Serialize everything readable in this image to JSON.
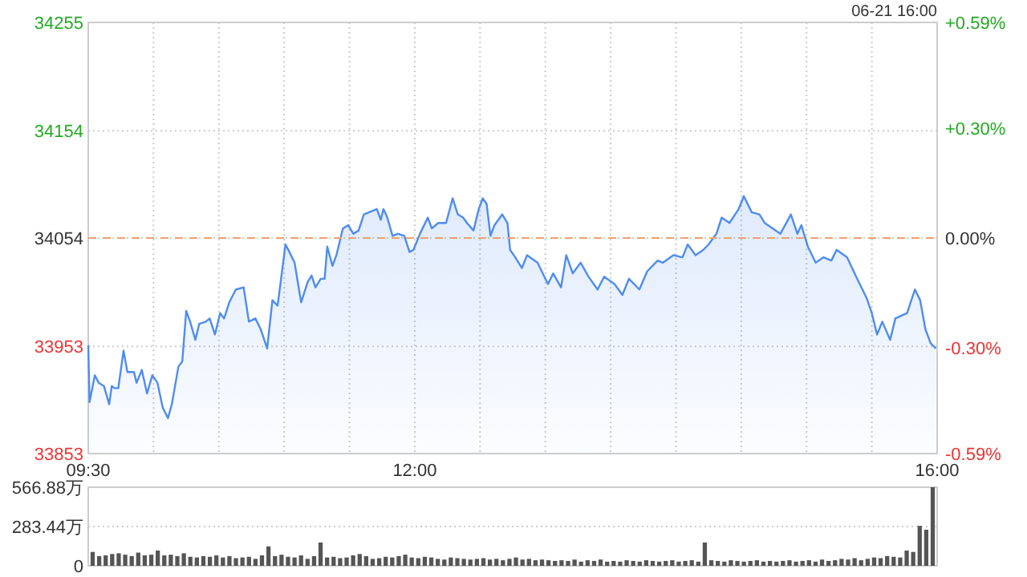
{
  "chart_data": [
    {
      "type": "area",
      "annotations": [
        "06-21 16:00"
      ],
      "x": [
        9.5,
        9.51,
        9.55,
        9.58,
        9.62,
        9.66,
        9.68,
        9.7,
        9.73,
        9.77,
        9.8,
        9.85,
        9.87,
        9.91,
        9.95,
        9.99,
        10.03,
        10.07,
        10.11,
        10.14,
        10.19,
        10.22,
        10.25,
        10.28,
        10.32,
        10.35,
        10.4,
        10.43,
        10.47,
        10.51,
        10.54,
        10.58,
        10.63,
        10.69,
        10.73,
        10.78,
        10.82,
        10.87,
        10.91,
        10.95,
        11.01,
        11.04,
        11.08,
        11.13,
        11.18,
        11.21,
        11.24,
        11.28,
        11.31,
        11.33,
        11.37,
        11.4,
        11.45,
        11.49,
        11.53,
        11.57,
        11.61,
        11.65,
        11.71,
        11.74,
        11.76,
        11.79,
        11.83,
        11.87,
        11.92,
        11.96,
        11.99,
        12.04,
        12.1,
        12.13,
        12.18,
        12.24,
        12.29,
        12.33,
        12.37,
        12.4,
        12.45,
        12.49,
        12.52,
        12.55,
        12.58,
        12.61,
        12.67,
        12.71,
        12.73,
        12.77,
        12.82,
        12.86,
        12.94,
        13.02,
        13.06,
        13.12,
        13.16,
        13.21,
        13.27,
        13.33,
        13.4,
        13.45,
        13.53,
        13.59,
        13.64,
        13.72,
        13.78,
        13.86,
        13.9,
        13.98,
        14.05,
        14.09,
        14.15,
        14.21,
        14.25,
        14.31,
        14.35,
        14.41,
        14.48,
        14.52,
        14.58,
        14.64,
        14.68,
        14.74,
        14.8,
        14.88,
        14.93,
        14.96,
        15.01,
        15.07,
        15.13,
        15.19,
        15.23,
        15.31,
        15.38,
        15.46,
        15.5,
        15.54,
        15.58,
        15.64,
        15.68,
        15.77,
        15.83,
        15.87,
        15.91,
        15.95,
        15.99
      ],
      "series": [
        {
          "color": "#4e8cf0",
          "values": [
            33954,
            33901,
            33926,
            33919,
            33916,
            33899,
            33916,
            33914,
            33914,
            33949,
            33929,
            33929,
            33919,
            33931,
            33909,
            33926,
            33919,
            33896,
            33886,
            33899,
            33934,
            33939,
            33986,
            33976,
            33959,
            33974,
            33976,
            33979,
            33964,
            33984,
            33979,
            33994,
            34006,
            34008,
            33976,
            33979,
            33969,
            33951,
            33996,
            33991,
            34048,
            34041,
            34031,
            33994,
            34013,
            34019,
            34008,
            34016,
            34016,
            34046,
            34028,
            34038,
            34063,
            34066,
            34058,
            34061,
            34076,
            34078,
            34081,
            34071,
            34081,
            34073,
            34056,
            34058,
            34056,
            34041,
            34043,
            34058,
            34073,
            34063,
            34068,
            34068,
            34091,
            34076,
            34073,
            34068,
            34061,
            34081,
            34091,
            34086,
            34056,
            34066,
            34076,
            34068,
            34043,
            34036,
            34026,
            34038,
            34031,
            34011,
            34021,
            34008,
            34038,
            34021,
            34031,
            34018,
            34006,
            34018,
            34011,
            34001,
            34016,
            34006,
            34023,
            34033,
            34031,
            34038,
            34036,
            34048,
            34038,
            34043,
            34048,
            34058,
            34073,
            34068,
            34081,
            34093,
            34078,
            34076,
            34068,
            34063,
            34058,
            34076,
            34058,
            34066,
            34046,
            34031,
            34036,
            34033,
            34043,
            34036,
            34018,
            33998,
            33984,
            33964,
            33976,
            33959,
            33979,
            33984,
            34006,
            33996,
            33969,
            33956,
            33951
          ]
        }
      ],
      "xlim": [
        9.5,
        16
      ],
      "xticks": [
        {
          "value": 9.5,
          "label": "09:30"
        },
        {
          "value": 10,
          "label": null
        },
        {
          "value": 10.5,
          "label": null
        },
        {
          "value": 11,
          "label": null
        },
        {
          "value": 11.5,
          "label": null
        },
        {
          "value": 12,
          "label": "12:00"
        },
        {
          "value": 12.5,
          "label": null
        },
        {
          "value": 13,
          "label": null
        },
        {
          "value": 13.5,
          "label": null
        },
        {
          "value": 14,
          "label": null
        },
        {
          "value": 14.5,
          "label": null
        },
        {
          "value": 15,
          "label": null
        },
        {
          "value": 15.5,
          "label": null
        },
        {
          "value": 16,
          "label": "16:00"
        }
      ],
      "ylim": [
        33853,
        34255
      ],
      "yticks": [
        33853,
        33953,
        34054,
        34154,
        34255
      ],
      "y2lim": [
        -0.59,
        0.59
      ],
      "y2ticks": [
        {
          "value": -0.59,
          "label": "-0.59%"
        },
        {
          "value": -0.3,
          "label": "-0.30%"
        },
        {
          "value": 0,
          "label": "0.00%"
        },
        {
          "value": 0.3,
          "label": "+0.30%"
        },
        {
          "value": 0.59,
          "label": "+0.59%"
        }
      ],
      "ref_lines": [
        {
          "axis": "y",
          "value": 34054,
          "color": "#f0a070",
          "line_style": "dashed"
        }
      ],
      "grid": true
    },
    {
      "type": "bar",
      "categories": [
        null,
        null,
        null,
        null,
        null,
        null,
        null,
        null,
        null,
        null,
        null,
        null,
        null,
        null,
        null,
        null,
        null,
        null,
        null,
        null,
        null,
        null,
        null,
        null,
        null,
        null,
        null,
        null,
        null,
        null,
        null,
        null,
        null,
        null,
        null,
        null,
        null,
        null,
        null,
        null,
        null,
        null,
        null,
        null,
        null,
        null,
        null,
        null,
        null,
        null,
        null,
        null,
        null,
        null,
        null,
        null,
        null,
        null,
        null,
        null,
        null,
        null,
        null,
        null,
        null,
        null,
        null,
        null,
        null,
        null,
        null,
        null,
        null,
        null,
        null,
        null,
        null,
        null,
        null,
        null,
        null,
        null,
        null,
        null,
        null,
        null,
        null,
        null,
        null,
        null,
        null,
        null,
        null,
        null,
        null,
        null,
        null,
        null,
        null,
        null,
        null,
        null,
        null,
        null,
        null,
        null,
        null,
        null,
        null,
        null,
        null,
        null,
        null,
        null,
        null,
        null,
        null,
        null,
        null,
        null,
        null,
        null,
        null,
        null,
        null,
        null,
        null,
        null,
        null,
        null
      ],
      "values": [
        100,
        70,
        75,
        85,
        90,
        80,
        70,
        95,
        75,
        80,
        110,
        75,
        80,
        70,
        90,
        65,
        60,
        70,
        65,
        75,
        60,
        70,
        55,
        60,
        65,
        50,
        75,
        140,
        70,
        80,
        65,
        60,
        75,
        50,
        70,
        168,
        60,
        65,
        55,
        60,
        75,
        85,
        70,
        50,
        55,
        65,
        60,
        70,
        80,
        60,
        55,
        65,
        60,
        50,
        45,
        60,
        55,
        50,
        45,
        50,
        55,
        45,
        50,
        40,
        50,
        60,
        45,
        50,
        40,
        45,
        40,
        35,
        40,
        35,
        45,
        30,
        40,
        35,
        45,
        30,
        35,
        30,
        40,
        35,
        30,
        40,
        35,
        30,
        35,
        40,
        30,
        35,
        40,
        30,
        168,
        40,
        35,
        30,
        40,
        35,
        30,
        35,
        40,
        30,
        35,
        30,
        35,
        40,
        30,
        35,
        40,
        30,
        45,
        35,
        40,
        50,
        45,
        55,
        40,
        50,
        60,
        55,
        70,
        65,
        60,
        110,
        100,
        288,
        260,
        566.88
      ],
      "color": "#555555",
      "ylim": [
        0,
        566.88
      ],
      "yticks": [
        0,
        {
          "value": 283.44,
          "label": "283.44万"
        },
        {
          "value": 566.88,
          "label": "566.88万"
        }
      ],
      "grid": "y",
      "tick_labels": "y"
    }
  ]
}
